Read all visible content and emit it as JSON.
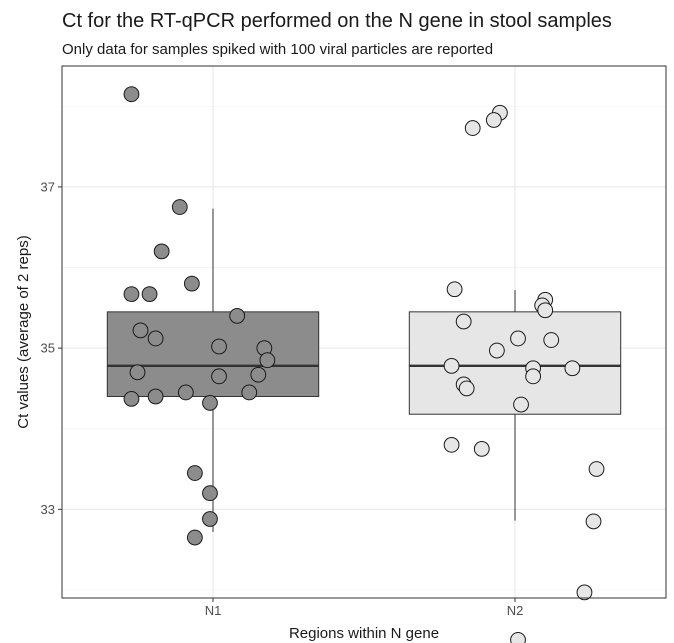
{
  "chart_data": {
    "type": "boxplot",
    "title": "Ct for the RT-qPCR performed on the N gene in stool samples",
    "subtitle": "Only data for samples spiked with 100 viral particles are reported",
    "xlabel": "Regions within N gene",
    "ylabel": "Ct values (average of 2 reps)",
    "categories": [
      "N1",
      "N2"
    ],
    "ylim": [
      31.9,
      38.5
    ],
    "yticks": [
      33,
      35,
      37
    ],
    "ytick_labels": [
      "33",
      "35",
      "37"
    ],
    "grid": true,
    "groups": [
      {
        "name": "N1",
        "fill": "#8c8c8c",
        "point_fill": "#8c8c8c",
        "box": {
          "q1": 34.4,
          "median": 34.78,
          "q3": 35.45,
          "whisker_low": 32.72,
          "whisker_high": 36.73
        },
        "points": [
          {
            "jitter": -0.27,
            "y": 38.15
          },
          {
            "jitter": -0.11,
            "y": 36.75
          },
          {
            "jitter": -0.17,
            "y": 36.2
          },
          {
            "jitter": -0.07,
            "y": 35.8
          },
          {
            "jitter": -0.27,
            "y": 35.67
          },
          {
            "jitter": -0.21,
            "y": 35.67
          },
          {
            "jitter": 0.08,
            "y": 35.4
          },
          {
            "jitter": -0.24,
            "y": 35.22
          },
          {
            "jitter": -0.19,
            "y": 35.12
          },
          {
            "jitter": 0.17,
            "y": 35.0
          },
          {
            "jitter": 0.02,
            "y": 35.02
          },
          {
            "jitter": 0.18,
            "y": 34.85
          },
          {
            "jitter": -0.25,
            "y": 34.7
          },
          {
            "jitter": 0.15,
            "y": 34.67
          },
          {
            "jitter": 0.02,
            "y": 34.65
          },
          {
            "jitter": -0.09,
            "y": 34.45
          },
          {
            "jitter": 0.12,
            "y": 34.45
          },
          {
            "jitter": -0.19,
            "y": 34.4
          },
          {
            "jitter": -0.27,
            "y": 34.37
          },
          {
            "jitter": -0.01,
            "y": 34.32
          },
          {
            "jitter": -0.06,
            "y": 33.45
          },
          {
            "jitter": -0.01,
            "y": 33.2
          },
          {
            "jitter": -0.01,
            "y": 32.88
          },
          {
            "jitter": -0.06,
            "y": 32.65
          }
        ]
      },
      {
        "name": "N2",
        "fill": "#e6e6e6",
        "point_fill": "#e6e6e6",
        "box": {
          "q1": 34.18,
          "median": 34.78,
          "q3": 35.45,
          "whisker_low": 32.86,
          "whisker_high": 35.72
        },
        "points": [
          {
            "jitter": -0.05,
            "y": 37.92
          },
          {
            "jitter": -0.07,
            "y": 37.83
          },
          {
            "jitter": -0.14,
            "y": 37.73
          },
          {
            "jitter": -0.2,
            "y": 35.73
          },
          {
            "jitter": 0.1,
            "y": 35.6
          },
          {
            "jitter": 0.09,
            "y": 35.53
          },
          {
            "jitter": 0.1,
            "y": 35.47
          },
          {
            "jitter": -0.17,
            "y": 35.33
          },
          {
            "jitter": 0.01,
            "y": 35.12
          },
          {
            "jitter": 0.12,
            "y": 35.1
          },
          {
            "jitter": -0.06,
            "y": 34.97
          },
          {
            "jitter": -0.21,
            "y": 34.78
          },
          {
            "jitter": 0.06,
            "y": 34.75
          },
          {
            "jitter": 0.19,
            "y": 34.75
          },
          {
            "jitter": 0.06,
            "y": 34.65
          },
          {
            "jitter": -0.17,
            "y": 34.55
          },
          {
            "jitter": -0.16,
            "y": 34.5
          },
          {
            "jitter": 0.02,
            "y": 34.3
          },
          {
            "jitter": -0.21,
            "y": 33.8
          },
          {
            "jitter": -0.11,
            "y": 33.75
          },
          {
            "jitter": 0.27,
            "y": 33.5
          },
          {
            "jitter": 0.26,
            "y": 32.85
          },
          {
            "jitter": 0.23,
            "y": 31.97
          },
          {
            "jitter": 0.01,
            "y": 31.38
          }
        ]
      }
    ]
  }
}
